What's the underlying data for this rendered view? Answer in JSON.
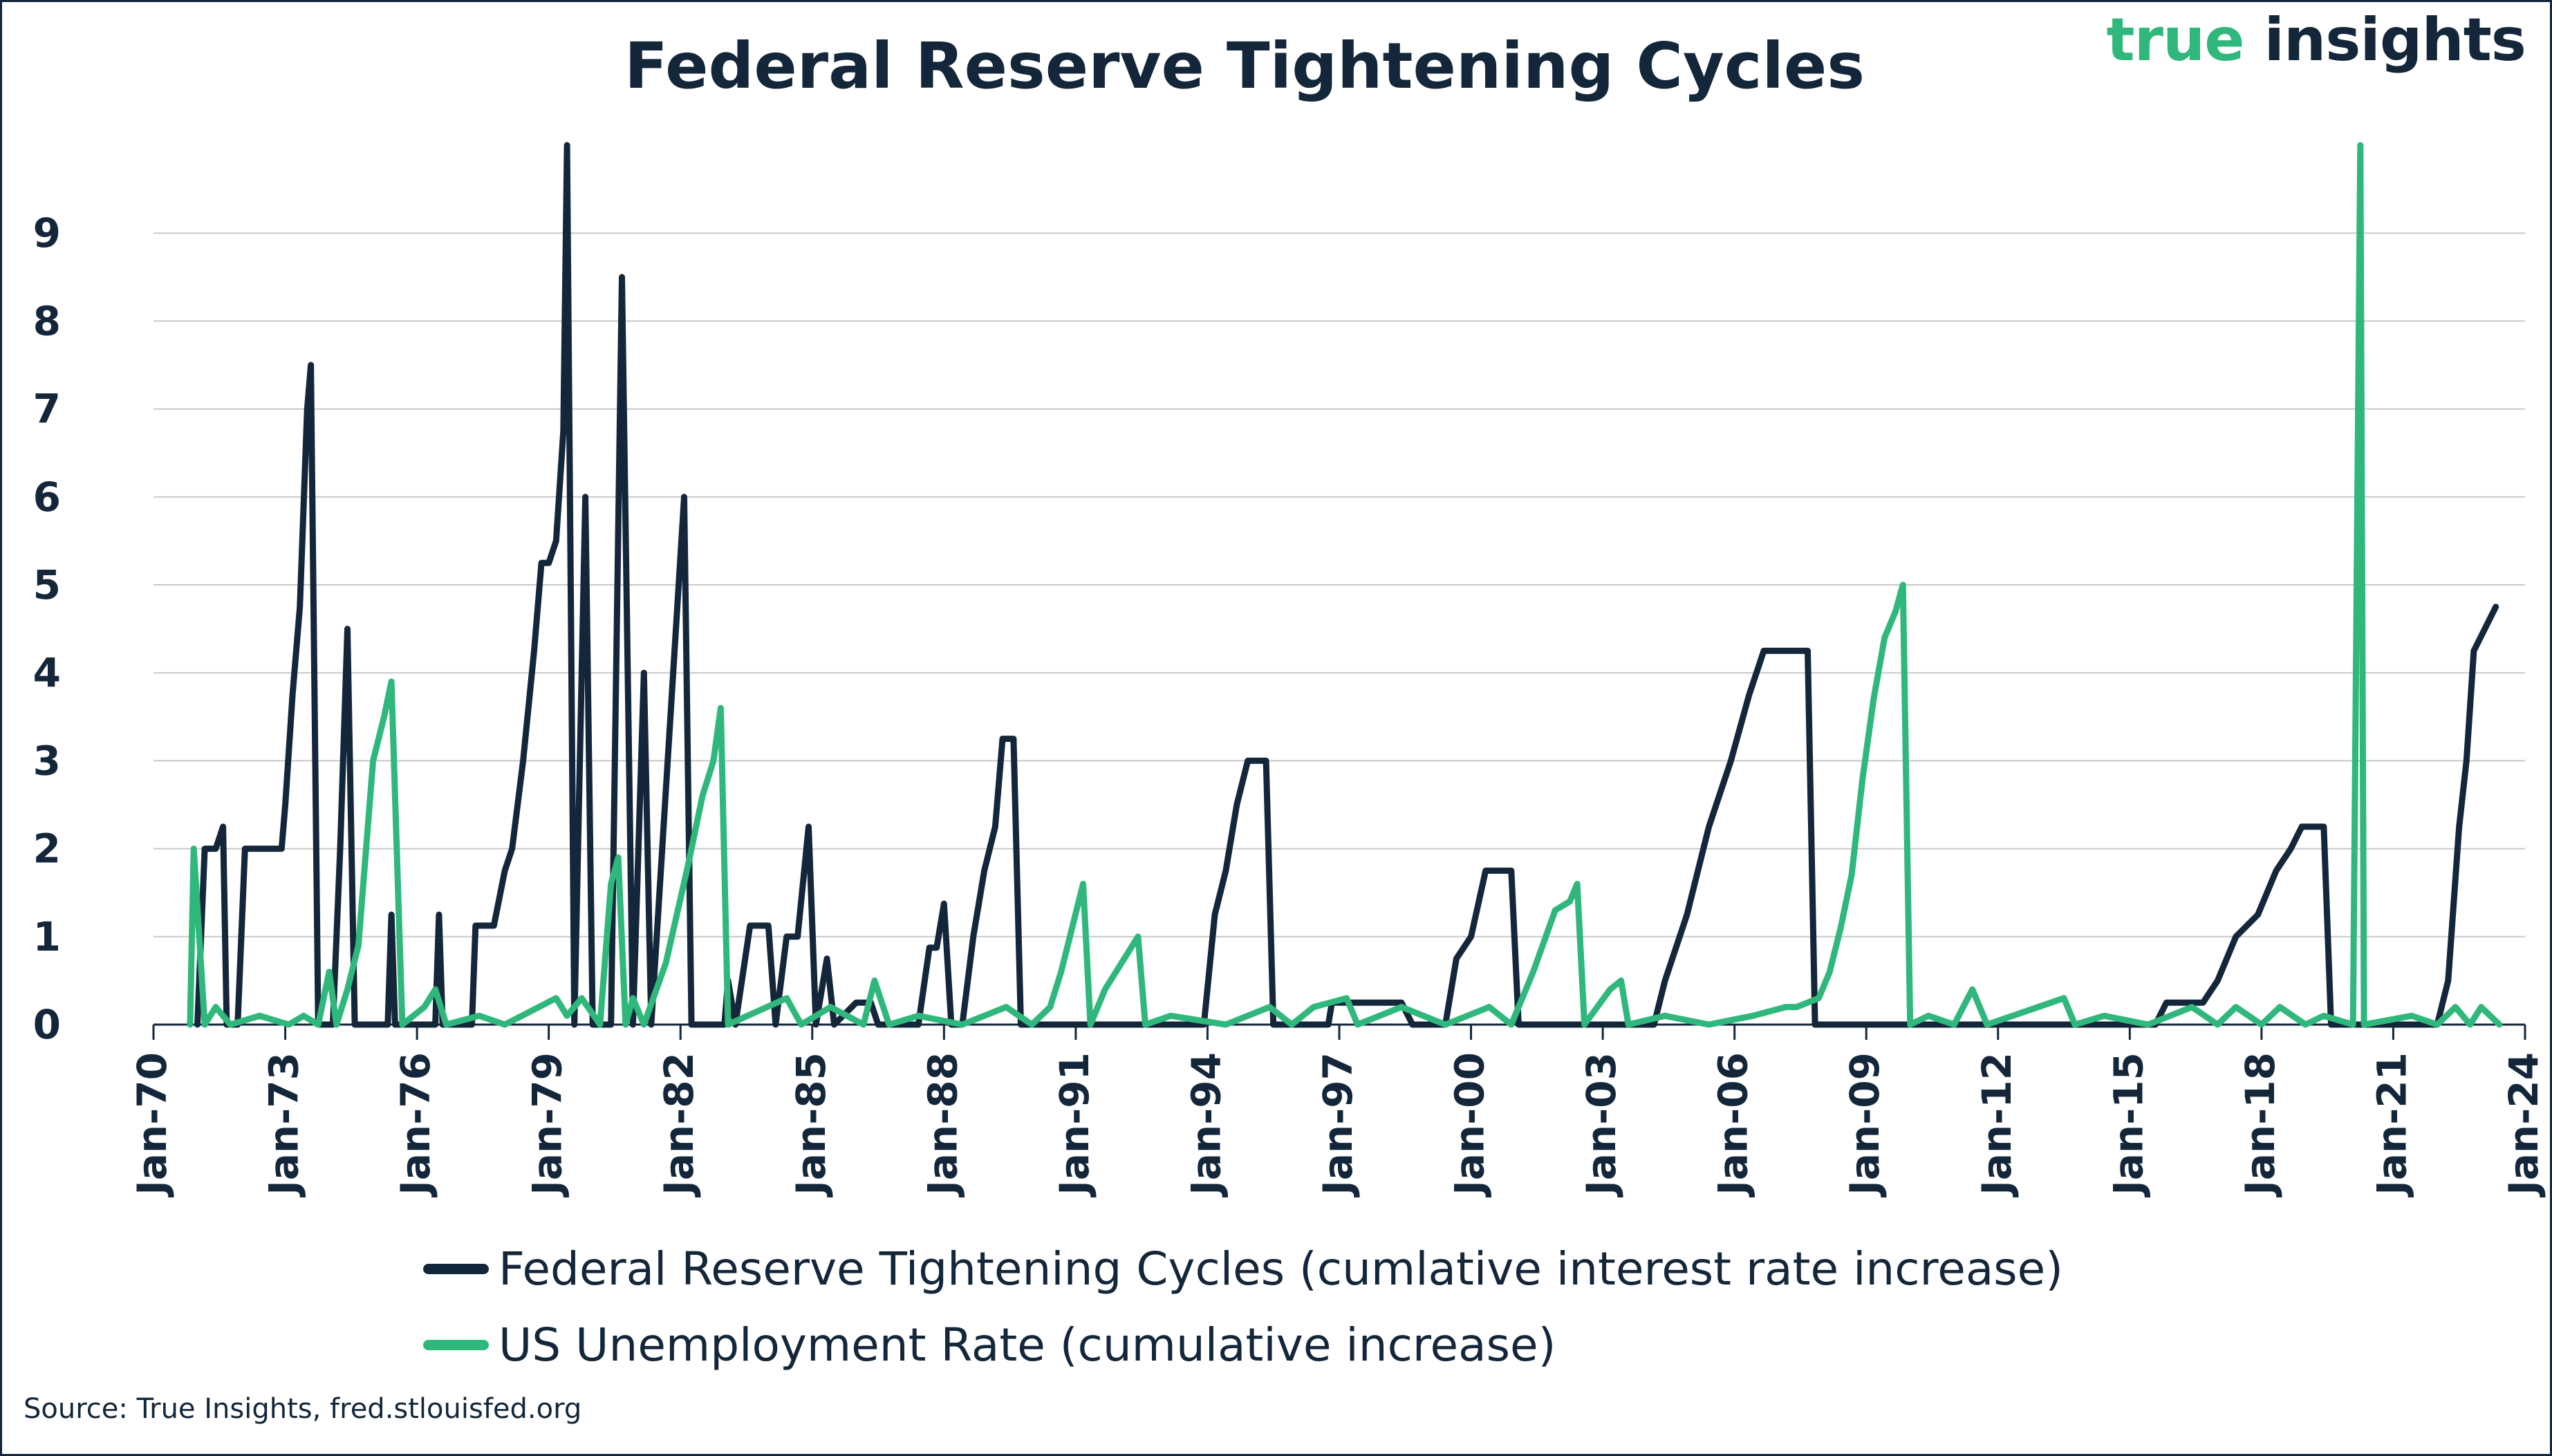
{
  "title": "Federal Reserve Tightening Cycles",
  "brand": {
    "part1": "true",
    "part2": " insights"
  },
  "source": "Source: True Insights, fred.stlouisfed.org",
  "colors": {
    "fed": "#14263a",
    "unemployment": "#2fb77c",
    "brand_green": "#2fb77c",
    "grid": "#c8c8c8",
    "text": "#14263a"
  },
  "chart_data": {
    "type": "line",
    "title": "Federal Reserve Tightening Cycles",
    "xlabel": "",
    "ylabel": "",
    "x_axis": {
      "type": "date",
      "range": [
        "1970-01",
        "2024-01"
      ],
      "tick_labels": [
        "Jan-70",
        "Jan-73",
        "Jan-76",
        "Jan-79",
        "Jan-82",
        "Jan-85",
        "Jan-88",
        "Jan-91",
        "Jan-94",
        "Jan-97",
        "Jan-00",
        "Jan-03",
        "Jan-06",
        "Jan-09",
        "Jan-12",
        "Jan-15",
        "Jan-18",
        "Jan-21",
        "Jan-24"
      ],
      "tick_dates": [
        "1970-01",
        "1973-01",
        "1976-01",
        "1979-01",
        "1982-01",
        "1985-01",
        "1988-01",
        "1991-01",
        "1994-01",
        "1997-01",
        "2000-01",
        "2003-01",
        "2006-01",
        "2009-01",
        "2012-01",
        "2015-01",
        "2018-01",
        "2021-01",
        "2024-01"
      ]
    },
    "y_axis": {
      "range": [
        0,
        10
      ],
      "ticks": [
        0,
        1,
        2,
        3,
        4,
        5,
        6,
        7,
        8,
        9
      ],
      "grid": true
    },
    "legend": {
      "position": "bottom"
    },
    "series": [
      {
        "name": "Federal Reserve Tightening Cycles (cumlative interest rate increase)",
        "color": "#14263a",
        "points": [
          [
            "1971-01",
            0
          ],
          [
            "1971-03",
            2
          ],
          [
            "1971-06",
            2
          ],
          [
            "1971-08",
            2.25
          ],
          [
            "1971-09",
            0
          ],
          [
            "1971-12",
            0
          ],
          [
            "1972-02",
            2
          ],
          [
            "1972-12",
            2
          ],
          [
            "1973-01",
            2.5
          ],
          [
            "1973-03",
            3.75
          ],
          [
            "1973-05",
            4.75
          ],
          [
            "1973-07",
            7
          ],
          [
            "1973-08",
            7.5
          ],
          [
            "1973-10",
            0
          ],
          [
            "1974-02",
            0
          ],
          [
            "1974-04",
            2
          ],
          [
            "1974-06",
            4.5
          ],
          [
            "1974-08",
            0
          ],
          [
            "1975-05",
            0
          ],
          [
            "1975-06",
            1.25
          ],
          [
            "1975-07",
            0
          ],
          [
            "1976-06",
            0
          ],
          [
            "1976-07",
            1.25
          ],
          [
            "1976-08",
            0
          ],
          [
            "1977-04",
            0
          ],
          [
            "1977-05",
            1.125
          ],
          [
            "1977-10",
            1.125
          ],
          [
            "1978-01",
            1.75
          ],
          [
            "1978-03",
            2
          ],
          [
            "1978-06",
            3
          ],
          [
            "1978-09",
            4.25
          ],
          [
            "1978-11",
            5.25
          ],
          [
            "1979-01",
            5.25
          ],
          [
            "1979-03",
            5.5
          ],
          [
            "1979-05",
            6.75
          ],
          [
            "1979-06",
            10
          ],
          [
            "1979-08",
            0
          ],
          [
            "1979-11",
            6
          ],
          [
            "1980-01",
            0
          ],
          [
            "1980-06",
            0
          ],
          [
            "1980-09",
            8.5
          ],
          [
            "1980-12",
            0
          ],
          [
            "1981-03",
            4
          ],
          [
            "1981-05",
            0
          ],
          [
            "1982-02",
            6
          ],
          [
            "1982-04",
            0
          ],
          [
            "1983-01",
            0
          ],
          [
            "1983-02",
            0.5
          ],
          [
            "1983-04",
            0
          ],
          [
            "1983-08",
            1.125
          ],
          [
            "1984-01",
            1.125
          ],
          [
            "1984-03",
            0
          ],
          [
            "1984-06",
            1
          ],
          [
            "1984-09",
            1
          ],
          [
            "1984-12",
            2.25
          ],
          [
            "1985-02",
            0
          ],
          [
            "1985-05",
            0.75
          ],
          [
            "1985-07",
            0
          ],
          [
            "1986-01",
            0.25
          ],
          [
            "1986-05",
            0.25
          ],
          [
            "1986-07",
            0
          ],
          [
            "1987-06",
            0
          ],
          [
            "1987-09",
            0.875
          ],
          [
            "1987-11",
            0.875
          ],
          [
            "1988-01",
            1.375
          ],
          [
            "1988-03",
            0
          ],
          [
            "1988-06",
            0
          ],
          [
            "1988-09",
            1
          ],
          [
            "1988-12",
            1.75
          ],
          [
            "1989-03",
            2.25
          ],
          [
            "1989-05",
            3.25
          ],
          [
            "1989-08",
            3.25
          ],
          [
            "1989-10",
            0
          ],
          [
            "1993-12",
            0
          ],
          [
            "1994-03",
            1.25
          ],
          [
            "1994-06",
            1.75
          ],
          [
            "1994-09",
            2.5
          ],
          [
            "1994-12",
            3
          ],
          [
            "1995-05",
            3
          ],
          [
            "1995-07",
            0
          ],
          [
            "1996-10",
            0
          ],
          [
            "1996-11",
            0.25
          ],
          [
            "1998-06",
            0.25
          ],
          [
            "1998-09",
            0
          ],
          [
            "1999-06",
            0
          ],
          [
            "1999-09",
            0.75
          ],
          [
            "2000-01",
            1
          ],
          [
            "2000-05",
            1.75
          ],
          [
            "2000-12",
            1.75
          ],
          [
            "2001-02",
            0
          ],
          [
            "2004-03",
            0
          ],
          [
            "2004-06",
            0.5
          ],
          [
            "2004-12",
            1.25
          ],
          [
            "2005-06",
            2.25
          ],
          [
            "2005-12",
            3
          ],
          [
            "2006-05",
            3.75
          ],
          [
            "2006-09",
            4.25
          ],
          [
            "2007-09",
            4.25
          ],
          [
            "2007-11",
            0
          ],
          [
            "2015-08",
            0
          ],
          [
            "2015-11",
            0.25
          ],
          [
            "2016-09",
            0.25
          ],
          [
            "2017-01",
            0.5
          ],
          [
            "2017-06",
            1
          ],
          [
            "2017-12",
            1.25
          ],
          [
            "2018-05",
            1.75
          ],
          [
            "2018-09",
            2
          ],
          [
            "2018-12",
            2.25
          ],
          [
            "2019-06",
            2.25
          ],
          [
            "2019-08",
            0
          ],
          [
            "2022-01",
            0
          ],
          [
            "2022-04",
            0.5
          ],
          [
            "2022-07",
            2.25
          ],
          [
            "2022-09",
            3
          ],
          [
            "2022-11",
            4.25
          ],
          [
            "2023-05",
            4.75
          ]
        ]
      },
      {
        "name": "US Unemployment Rate (cumulative increase)",
        "color": "#2fb77c",
        "points": [
          [
            "1970-11",
            0
          ],
          [
            "1970-12",
            2
          ],
          [
            "1971-03",
            0
          ],
          [
            "1971-06",
            0.2
          ],
          [
            "1971-10",
            0
          ],
          [
            "1972-06",
            0.1
          ],
          [
            "1973-02",
            0
          ],
          [
            "1973-06",
            0.1
          ],
          [
            "1973-10",
            0
          ],
          [
            "1974-01",
            0.6
          ],
          [
            "1974-03",
            0
          ],
          [
            "1974-06",
            0.4
          ],
          [
            "1974-09",
            0.9
          ],
          [
            "1975-01",
            3
          ],
          [
            "1975-04",
            3.5
          ],
          [
            "1975-06",
            3.9
          ],
          [
            "1975-09",
            0
          ],
          [
            "1976-03",
            0.2
          ],
          [
            "1976-06",
            0.4
          ],
          [
            "1976-09",
            0
          ],
          [
            "1977-06",
            0.1
          ],
          [
            "1978-01",
            0
          ],
          [
            "1979-03",
            0.3
          ],
          [
            "1979-06",
            0.1
          ],
          [
            "1979-10",
            0.3
          ],
          [
            "1980-03",
            0
          ],
          [
            "1980-06",
            1.6
          ],
          [
            "1980-08",
            1.9
          ],
          [
            "1980-10",
            0
          ],
          [
            "1980-12",
            0.3
          ],
          [
            "1981-03",
            0
          ],
          [
            "1981-09",
            0.7
          ],
          [
            "1982-03",
            1.8
          ],
          [
            "1982-07",
            2.6
          ],
          [
            "1982-10",
            3
          ],
          [
            "1982-12",
            3.6
          ],
          [
            "1983-02",
            0
          ],
          [
            "1984-06",
            0.3
          ],
          [
            "1984-10",
            0
          ],
          [
            "1985-06",
            0.2
          ],
          [
            "1986-03",
            0
          ],
          [
            "1986-06",
            0.5
          ],
          [
            "1986-10",
            0
          ],
          [
            "1987-06",
            0.1
          ],
          [
            "1988-06",
            0
          ],
          [
            "1989-06",
            0.2
          ],
          [
            "1990-01",
            0
          ],
          [
            "1990-06",
            0.2
          ],
          [
            "1990-09",
            0.6
          ],
          [
            "1990-12",
            1.1
          ],
          [
            "1991-03",
            1.6
          ],
          [
            "1991-05",
            0
          ],
          [
            "1991-09",
            0.4
          ],
          [
            "1992-03",
            0.8
          ],
          [
            "1992-06",
            1
          ],
          [
            "1992-08",
            0
          ],
          [
            "1993-03",
            0.1
          ],
          [
            "1994-06",
            0
          ],
          [
            "1995-06",
            0.2
          ],
          [
            "1995-12",
            0
          ],
          [
            "1996-06",
            0.2
          ],
          [
            "1997-03",
            0.3
          ],
          [
            "1997-06",
            0
          ],
          [
            "1998-06",
            0.2
          ],
          [
            "1999-06",
            0
          ],
          [
            "2000-06",
            0.2
          ],
          [
            "2000-12",
            0
          ],
          [
            "2001-03",
            0.3
          ],
          [
            "2001-06",
            0.6
          ],
          [
            "2001-12",
            1.3
          ],
          [
            "2002-04",
            1.4
          ],
          [
            "2002-06",
            1.6
          ],
          [
            "2002-08",
            0
          ],
          [
            "2003-03",
            0.4
          ],
          [
            "2003-06",
            0.5
          ],
          [
            "2003-08",
            0
          ],
          [
            "2004-06",
            0.1
          ],
          [
            "2005-06",
            0
          ],
          [
            "2006-06",
            0.1
          ],
          [
            "2007-03",
            0.2
          ],
          [
            "2007-06",
            0.2
          ],
          [
            "2007-12",
            0.3
          ],
          [
            "2008-03",
            0.6
          ],
          [
            "2008-06",
            1.1
          ],
          [
            "2008-09",
            1.7
          ],
          [
            "2008-12",
            2.8
          ],
          [
            "2009-03",
            3.7
          ],
          [
            "2009-06",
            4.4
          ],
          [
            "2009-09",
            4.7
          ],
          [
            "2009-11",
            5
          ],
          [
            "2010-01",
            0
          ],
          [
            "2010-06",
            0.1
          ],
          [
            "2011-01",
            0
          ],
          [
            "2011-06",
            0.4
          ],
          [
            "2011-10",
            0
          ],
          [
            "2013-07",
            0.3
          ],
          [
            "2013-10",
            0
          ],
          [
            "2014-06",
            0.1
          ],
          [
            "2015-06",
            0
          ],
          [
            "2016-06",
            0.2
          ],
          [
            "2017-01",
            0
          ],
          [
            "2017-06",
            0.2
          ],
          [
            "2018-01",
            0
          ],
          [
            "2018-06",
            0.2
          ],
          [
            "2019-01",
            0
          ],
          [
            "2019-06",
            0.1
          ],
          [
            "2020-02",
            0
          ],
          [
            "2020-04",
            10
          ],
          [
            "2020-05",
            0
          ],
          [
            "2021-06",
            0.1
          ],
          [
            "2022-01",
            0
          ],
          [
            "2022-06",
            0.2
          ],
          [
            "2022-10",
            0
          ],
          [
            "2023-01",
            0.2
          ],
          [
            "2023-06",
            0
          ]
        ]
      }
    ]
  }
}
